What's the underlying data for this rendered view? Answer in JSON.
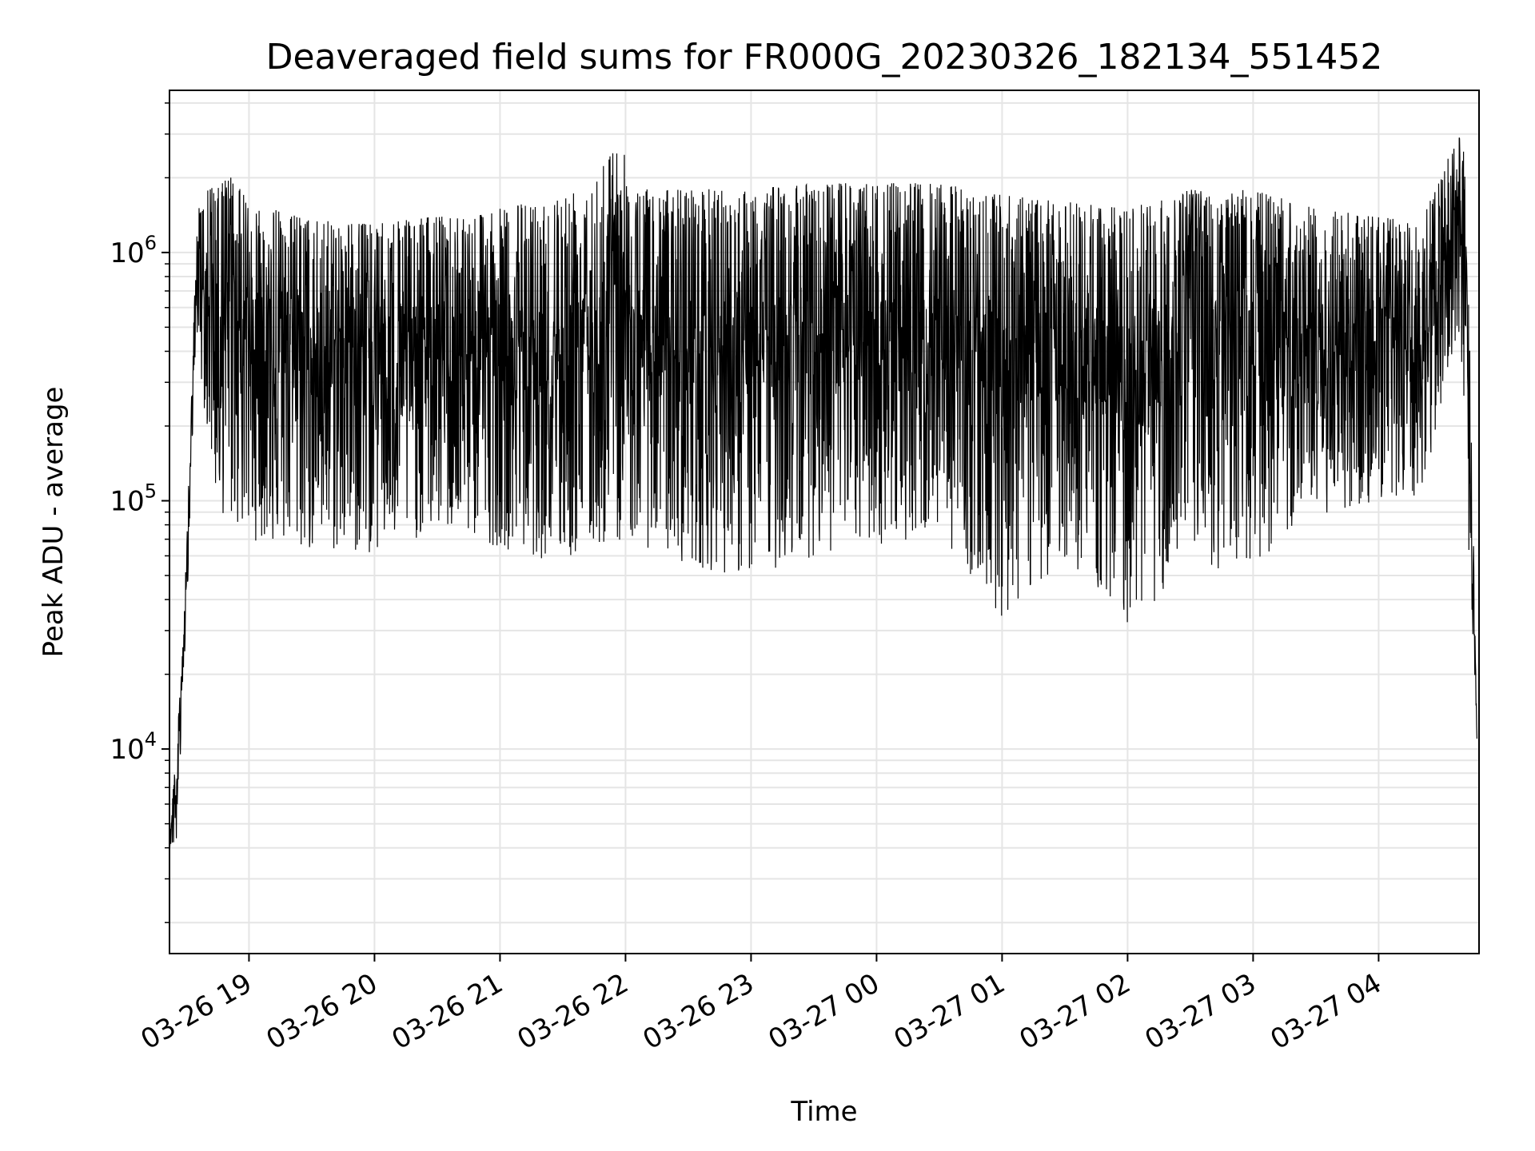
{
  "chart_data": {
    "type": "line",
    "title": "Deaveraged field sums for FR000G_20230326_182134_551452",
    "xlabel": "Time",
    "ylabel": "Peak ADU - average",
    "yscale": "log",
    "xlim": [
      "03-26 18:22",
      "03-27 04:48"
    ],
    "ylim": [
      1500,
      4500000
    ],
    "grid": true,
    "line_color": "#000000",
    "grid_color": "#e5e5e5",
    "x_ticks": [
      {
        "t": "03-26 19:00",
        "label": "03-26 19"
      },
      {
        "t": "03-26 20:00",
        "label": "03-26 20"
      },
      {
        "t": "03-26 21:00",
        "label": "03-26 21"
      },
      {
        "t": "03-26 22:00",
        "label": "03-26 22"
      },
      {
        "t": "03-26 23:00",
        "label": "03-26 23"
      },
      {
        "t": "03-27 00:00",
        "label": "03-27 00"
      },
      {
        "t": "03-27 01:00",
        "label": "03-27 01"
      },
      {
        "t": "03-27 02:00",
        "label": "03-27 02"
      },
      {
        "t": "03-27 03:00",
        "label": "03-27 03"
      },
      {
        "t": "03-27 04:00",
        "label": "03-27 04"
      }
    ],
    "y_ticks": [
      {
        "value": 10000,
        "base": "10",
        "exp": "4"
      },
      {
        "value": 100000,
        "base": "10",
        "exp": "5"
      },
      {
        "value": 1000000,
        "base": "10",
        "exp": "6"
      }
    ],
    "series": [
      {
        "upper_envelope": [
          [
            "03-26 18:22",
            5000
          ],
          [
            "03-26 18:26",
            12000
          ],
          [
            "03-26 18:28",
            25000
          ],
          [
            "03-26 18:30",
            60000
          ],
          [
            "03-26 18:32",
            200000
          ],
          [
            "03-26 18:35",
            1200000
          ],
          [
            "03-26 18:37",
            1900000
          ],
          [
            "03-26 18:45",
            1800000
          ],
          [
            "03-26 18:50",
            2100000
          ],
          [
            "03-26 19:00",
            1600000
          ],
          [
            "03-26 19:30",
            1350000
          ],
          [
            "03-26 20:00",
            1300000
          ],
          [
            "03-26 20:30",
            1400000
          ],
          [
            "03-26 21:00",
            1500000
          ],
          [
            "03-26 21:30",
            1700000
          ],
          [
            "03-26 21:59",
            2800000
          ],
          [
            "03-26 22:01",
            1800000
          ],
          [
            "03-26 22:30",
            1800000
          ],
          [
            "03-26 23:00",
            1800000
          ],
          [
            "03-26 23:30",
            1900000
          ],
          [
            "03-27 00:00",
            1900000
          ],
          [
            "03-27 00:30",
            1900000
          ],
          [
            "03-27 01:00",
            1700000
          ],
          [
            "03-27 01:30",
            1600000
          ],
          [
            "03-27 02:00",
            1500000
          ],
          [
            "03-27 02:30",
            1800000
          ],
          [
            "03-27 03:00",
            1800000
          ],
          [
            "03-27 03:30",
            1500000
          ],
          [
            "03-27 04:00",
            1400000
          ],
          [
            "03-27 04:20",
            1300000
          ],
          [
            "03-27 04:38",
            3000000
          ],
          [
            "03-27 04:41",
            2500000
          ],
          [
            "03-27 04:44",
            300000
          ],
          [
            "03-27 04:47",
            11000
          ]
        ],
        "lower_envelope": [
          [
            "03-26 18:22",
            4000
          ],
          [
            "03-26 18:26",
            4000
          ],
          [
            "03-26 18:28",
            15000
          ],
          [
            "03-26 18:30",
            30000
          ],
          [
            "03-26 18:32",
            100000
          ],
          [
            "03-26 18:35",
            500000
          ],
          [
            "03-26 18:37",
            300000
          ],
          [
            "03-26 18:45",
            90000
          ],
          [
            "03-26 19:00",
            70000
          ],
          [
            "03-26 19:30",
            60000
          ],
          [
            "03-26 20:00",
            60000
          ],
          [
            "03-26 20:30",
            75000
          ],
          [
            "03-26 21:00",
            65000
          ],
          [
            "03-26 21:30",
            55000
          ],
          [
            "03-26 22:00",
            70000
          ],
          [
            "03-26 22:30",
            55000
          ],
          [
            "03-26 23:00",
            48000
          ],
          [
            "03-26 23:30",
            60000
          ],
          [
            "03-27 00:00",
            65000
          ],
          [
            "03-27 00:30",
            75000
          ],
          [
            "03-27 01:00",
            33000
          ],
          [
            "03-27 01:30",
            58000
          ],
          [
            "03-27 02:00",
            32000
          ],
          [
            "03-27 02:30",
            50000
          ],
          [
            "03-27 03:00",
            55000
          ],
          [
            "03-27 03:30",
            85000
          ],
          [
            "03-27 04:00",
            100000
          ],
          [
            "03-27 04:20",
            100000
          ],
          [
            "03-27 04:38",
            500000
          ],
          [
            "03-27 04:44",
            40000
          ],
          [
            "03-27 04:47",
            11000
          ]
        ]
      }
    ]
  }
}
